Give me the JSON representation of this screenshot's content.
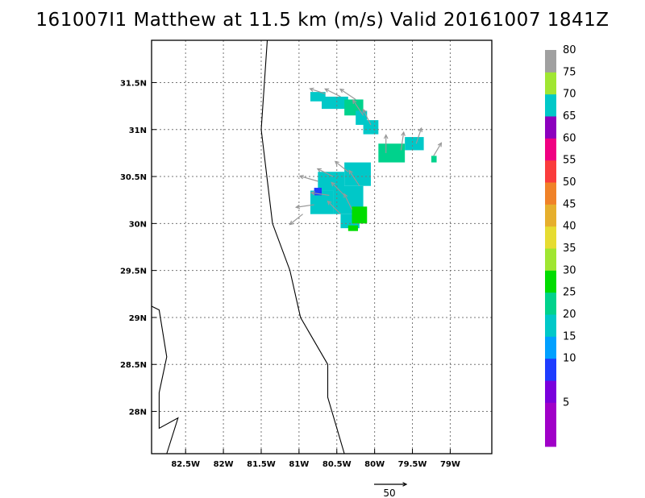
{
  "title": "161007I1 Matthew at 11.5 km (m/s) Valid 20161007 1841Z",
  "map": {
    "lon_range": [
      -82.95,
      -78.45
    ],
    "lat_range": [
      27.55,
      31.95
    ],
    "lat_ticks": [
      {
        "value": 31.5,
        "label": "31.5N"
      },
      {
        "value": 31.0,
        "label": "31N"
      },
      {
        "value": 30.5,
        "label": "30.5N"
      },
      {
        "value": 30.0,
        "label": "30N"
      },
      {
        "value": 29.5,
        "label": "29.5N"
      },
      {
        "value": 29.0,
        "label": "29N"
      },
      {
        "value": 28.5,
        "label": "28.5N"
      },
      {
        "value": 28.0,
        "label": "28N"
      }
    ],
    "lon_ticks": [
      {
        "value": -82.5,
        "label": "82.5W"
      },
      {
        "value": -82.0,
        "label": "82W"
      },
      {
        "value": -81.5,
        "label": "81.5W"
      },
      {
        "value": -81.0,
        "label": "81W"
      },
      {
        "value": -80.5,
        "label": "80.5W"
      },
      {
        "value": -80.0,
        "label": "80W"
      },
      {
        "value": -79.5,
        "label": "79.5W"
      },
      {
        "value": -79.0,
        "label": "79W"
      }
    ],
    "coastline": [
      [
        -81.42,
        31.95
      ],
      [
        -81.5,
        31.0
      ],
      [
        -81.35,
        30.0
      ],
      [
        -81.12,
        29.5
      ],
      [
        -80.98,
        29.0
      ],
      [
        -80.62,
        28.5
      ],
      [
        -80.62,
        28.15
      ],
      [
        -80.4,
        27.55
      ]
    ],
    "coastline_west": [
      [
        -82.95,
        29.12
      ],
      [
        -82.85,
        29.08
      ],
      [
        -82.75,
        28.58
      ],
      [
        -82.85,
        28.2
      ],
      [
        -82.85,
        27.82
      ],
      [
        -82.6,
        27.93
      ],
      [
        -82.75,
        27.55
      ]
    ],
    "wind_cells": [
      {
        "lon": [
          -80.85,
          -80.65
        ],
        "lat": [
          31.3,
          31.4
        ],
        "speed": 22
      },
      {
        "lon": [
          -80.7,
          -80.35
        ],
        "lat": [
          31.22,
          31.35
        ],
        "speed": 23
      },
      {
        "lon": [
          -80.4,
          -80.15
        ],
        "lat": [
          31.15,
          31.32
        ],
        "speed": 25
      },
      {
        "lon": [
          -80.25,
          -80.1
        ],
        "lat": [
          31.05,
          31.2
        ],
        "speed": 24
      },
      {
        "lon": [
          -80.15,
          -79.95
        ],
        "lat": [
          30.95,
          31.1
        ],
        "speed": 22
      },
      {
        "lon": [
          -79.95,
          -79.6
        ],
        "lat": [
          30.65,
          30.85
        ],
        "speed": 25
      },
      {
        "lon": [
          -79.6,
          -79.35
        ],
        "lat": [
          30.78,
          30.92
        ],
        "speed": 23
      },
      {
        "lon": [
          -79.25,
          -79.18
        ],
        "lat": [
          30.65,
          30.72
        ],
        "speed": 26
      },
      {
        "lon": [
          -80.4,
          -80.05
        ],
        "lat": [
          30.4,
          30.65
        ],
        "speed": 24
      },
      {
        "lon": [
          -80.75,
          -80.4
        ],
        "lat": [
          30.35,
          30.55
        ],
        "speed": 22
      },
      {
        "lon": [
          -80.85,
          -80.55
        ],
        "lat": [
          30.1,
          30.35
        ],
        "speed": 21
      },
      {
        "lon": [
          -80.55,
          -80.15
        ],
        "lat": [
          30.1,
          30.4
        ],
        "speed": 23
      },
      {
        "lon": [
          -80.45,
          -80.2
        ],
        "lat": [
          29.95,
          30.1
        ],
        "speed": 24
      },
      {
        "lon": [
          -80.35,
          -80.22
        ],
        "lat": [
          29.92,
          29.98
        ],
        "speed": 30
      },
      {
        "lon": [
          -80.3,
          -80.1
        ],
        "lat": [
          30.0,
          30.18
        ],
        "speed": 32
      },
      {
        "lon": [
          -80.8,
          -80.7
        ],
        "lat": [
          30.3,
          30.38
        ],
        "speed": 14
      }
    ],
    "wind_vectors": [
      {
        "lon": -80.65,
        "lat": 31.38,
        "u": -12,
        "v": 4
      },
      {
        "lon": -80.45,
        "lat": 31.35,
        "u": -12,
        "v": 6
      },
      {
        "lon": -80.25,
        "lat": 31.32,
        "u": -12,
        "v": 8
      },
      {
        "lon": -80.15,
        "lat": 31.15,
        "u": -8,
        "v": 12
      },
      {
        "lon": -80.05,
        "lat": 31.05,
        "u": -6,
        "v": 12
      },
      {
        "lon": -79.85,
        "lat": 30.75,
        "u": 0,
        "v": 14
      },
      {
        "lon": -79.65,
        "lat": 30.78,
        "u": 2,
        "v": 14
      },
      {
        "lon": -79.45,
        "lat": 30.85,
        "u": 4,
        "v": 12
      },
      {
        "lon": -79.22,
        "lat": 30.72,
        "u": 6,
        "v": 10
      },
      {
        "lon": -80.35,
        "lat": 30.55,
        "u": -10,
        "v": 8
      },
      {
        "lon": -80.55,
        "lat": 30.5,
        "u": -12,
        "v": 6
      },
      {
        "lon": -80.75,
        "lat": 30.45,
        "u": -14,
        "v": 4
      },
      {
        "lon": -80.6,
        "lat": 30.3,
        "u": -14,
        "v": 2
      },
      {
        "lon": -80.4,
        "lat": 30.3,
        "u": -10,
        "v": 10
      },
      {
        "lon": -80.3,
        "lat": 30.15,
        "u": -6,
        "v": 12
      },
      {
        "lon": -80.2,
        "lat": 30.4,
        "u": -8,
        "v": 12
      },
      {
        "lon": -80.45,
        "lat": 30.1,
        "u": -10,
        "v": 10
      },
      {
        "lon": -80.8,
        "lat": 30.2,
        "u": -14,
        "v": -2
      },
      {
        "lon": -80.95,
        "lat": 30.1,
        "u": -10,
        "v": -8
      }
    ]
  },
  "colorbar": {
    "levels": [
      {
        "label": "",
        "color": "#a000c8"
      },
      {
        "label": "5",
        "color": "#a000c8"
      },
      {
        "label": "",
        "color": "#7a00dc"
      },
      {
        "label": "10",
        "color": "#1e3cff"
      },
      {
        "label": "15",
        "color": "#00a0ff"
      },
      {
        "label": "20",
        "color": "#00c8c8"
      },
      {
        "label": "25",
        "color": "#00d28c"
      },
      {
        "label": "30",
        "color": "#00dc00"
      },
      {
        "label": "35",
        "color": "#a0e632"
      },
      {
        "label": "40",
        "color": "#e6dc32"
      },
      {
        "label": "45",
        "color": "#e6af2d"
      },
      {
        "label": "50",
        "color": "#f08228"
      },
      {
        "label": "55",
        "color": "#fa3c3c"
      },
      {
        "label": "60",
        "color": "#f00082"
      },
      {
        "label": "65",
        "color": "#8c00be"
      },
      {
        "label": "70",
        "color": "#00c8c8"
      },
      {
        "label": "75",
        "color": "#a0e632"
      },
      {
        "label": "80",
        "color": "#a0a0a0"
      }
    ]
  },
  "reference_vector": {
    "label": "50",
    "value": 50
  }
}
